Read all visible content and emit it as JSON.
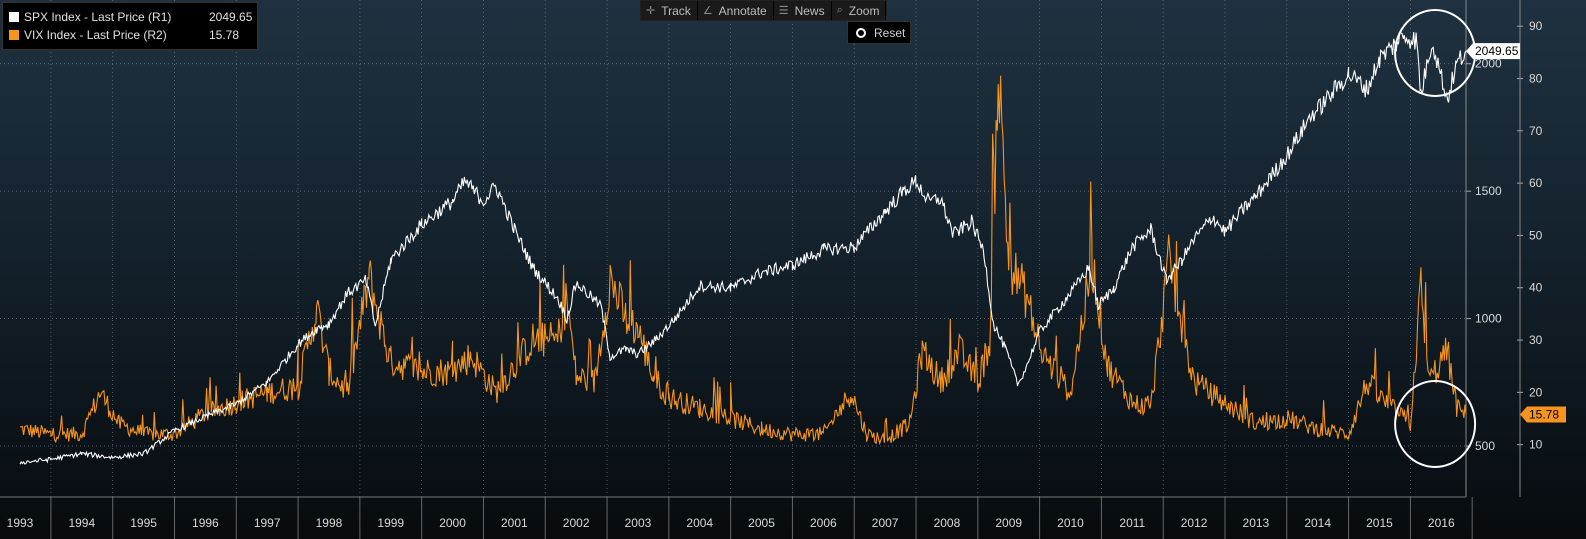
{
  "legend": {
    "items": [
      {
        "label": "SPX Index - Last Price (R1)",
        "value": "2049.65",
        "color": "#ffffff"
      },
      {
        "label": "VIX Index - Last Price (R2)",
        "value": "15.78",
        "color": "#f7941d"
      }
    ]
  },
  "toolbar": {
    "track": {
      "label": "Track",
      "icon": "crosshair-icon"
    },
    "annotate": {
      "label": "Annotate",
      "icon": "pencil-icon"
    },
    "news": {
      "label": "News",
      "icon": "news-icon"
    },
    "zoom": {
      "label": "Zoom",
      "icon": "magnifier-icon"
    },
    "reset": {
      "label": "Reset",
      "icon": "radio-dot-icon"
    }
  },
  "chart_data": {
    "type": "line",
    "x_ticks": [
      "1993",
      "1994",
      "1995",
      "1996",
      "1997",
      "1998",
      "1999",
      "2000",
      "2001",
      "2002",
      "2003",
      "2004",
      "2005",
      "2006",
      "2007",
      "2008",
      "2009",
      "2010",
      "2011",
      "2012",
      "2013",
      "2014",
      "2015",
      "2016"
    ],
    "xlim": [
      1993.0,
      2016.4
    ],
    "axes": {
      "spx": {
        "ticks": [
          "500",
          "1000",
          "1500",
          "2000"
        ],
        "ylim": [
          300,
          2250
        ]
      },
      "vix": {
        "ticks": [
          "10",
          "20",
          "30",
          "40",
          "50",
          "60",
          "70",
          "80",
          "90"
        ],
        "ylim": [
          0,
          95
        ]
      }
    },
    "series": [
      {
        "name": "SPX Index - Last Price (R1)",
        "color": "#ffffff",
        "axis": "spx",
        "last_value": "2049.65",
        "points": [
          [
            1993.0,
            435
          ],
          [
            1993.5,
            448
          ],
          [
            1994.0,
            470
          ],
          [
            1994.5,
            455
          ],
          [
            1995.0,
            470
          ],
          [
            1995.5,
            560
          ],
          [
            1996.0,
            615
          ],
          [
            1996.5,
            665
          ],
          [
            1997.0,
            750
          ],
          [
            1997.5,
            900
          ],
          [
            1997.8,
            960
          ],
          [
            1998.0,
            980
          ],
          [
            1998.3,
            1100
          ],
          [
            1998.6,
            1150
          ],
          [
            1998.75,
            970
          ],
          [
            1999.0,
            1230
          ],
          [
            1999.5,
            1370
          ],
          [
            2000.0,
            1460
          ],
          [
            2000.2,
            1540
          ],
          [
            2000.5,
            1460
          ],
          [
            2000.7,
            1520
          ],
          [
            2001.0,
            1350
          ],
          [
            2001.3,
            1200
          ],
          [
            2001.7,
            1080
          ],
          [
            2001.85,
            1000
          ],
          [
            2002.0,
            1140
          ],
          [
            2002.4,
            1050
          ],
          [
            2002.55,
            850
          ],
          [
            2002.8,
            880
          ],
          [
            2003.0,
            860
          ],
          [
            2003.3,
            920
          ],
          [
            2003.6,
            1000
          ],
          [
            2004.0,
            1130
          ],
          [
            2004.5,
            1120
          ],
          [
            2005.0,
            1180
          ],
          [
            2005.5,
            1210
          ],
          [
            2006.0,
            1270
          ],
          [
            2006.5,
            1280
          ],
          [
            2007.0,
            1420
          ],
          [
            2007.3,
            1500
          ],
          [
            2007.5,
            1540
          ],
          [
            2007.7,
            1460
          ],
          [
            2007.9,
            1470
          ],
          [
            2008.1,
            1330
          ],
          [
            2008.4,
            1380
          ],
          [
            2008.6,
            1260
          ],
          [
            2008.75,
            980
          ],
          [
            2008.95,
            880
          ],
          [
            2009.15,
            740
          ],
          [
            2009.3,
            820
          ],
          [
            2009.5,
            950
          ],
          [
            2010.0,
            1100
          ],
          [
            2010.3,
            1200
          ],
          [
            2010.45,
            1050
          ],
          [
            2010.7,
            1120
          ],
          [
            2011.0,
            1280
          ],
          [
            2011.3,
            1350
          ],
          [
            2011.55,
            1150
          ],
          [
            2011.8,
            1230
          ],
          [
            2012.0,
            1310
          ],
          [
            2012.3,
            1400
          ],
          [
            2012.5,
            1340
          ],
          [
            2012.8,
            1430
          ],
          [
            2013.0,
            1480
          ],
          [
            2013.5,
            1640
          ],
          [
            2013.9,
            1800
          ],
          [
            2014.0,
            1820
          ],
          [
            2014.5,
            1960
          ],
          [
            2014.8,
            1900
          ],
          [
            2015.0,
            2020
          ],
          [
            2015.4,
            2110
          ],
          [
            2015.6,
            2090
          ],
          [
            2015.67,
            1880
          ],
          [
            2015.85,
            2090
          ],
          [
            2016.1,
            1860
          ],
          [
            2016.25,
            2000
          ],
          [
            2016.4,
            2049.65
          ]
        ]
      },
      {
        "name": "VIX Index - Last Price (R2)",
        "color": "#f7941d",
        "axis": "vix",
        "last_value": "15.78",
        "points": [
          [
            1993.0,
            13
          ],
          [
            1993.5,
            12
          ],
          [
            1994.0,
            12
          ],
          [
            1994.3,
            20
          ],
          [
            1994.6,
            14
          ],
          [
            1995.0,
            12
          ],
          [
            1995.5,
            12
          ],
          [
            1996.0,
            16
          ],
          [
            1996.5,
            18
          ],
          [
            1997.0,
            20
          ],
          [
            1997.5,
            21
          ],
          [
            1997.8,
            36
          ],
          [
            1998.0,
            24
          ],
          [
            1998.3,
            20
          ],
          [
            1998.65,
            42
          ],
          [
            1998.9,
            30
          ],
          [
            1999.0,
            26
          ],
          [
            1999.5,
            24
          ],
          [
            2000.0,
            24
          ],
          [
            2000.3,
            27
          ],
          [
            2000.7,
            20
          ],
          [
            2001.0,
            25
          ],
          [
            2001.3,
            30
          ],
          [
            2001.7,
            30
          ],
          [
            2001.85,
            38
          ],
          [
            2002.0,
            23
          ],
          [
            2002.3,
            22
          ],
          [
            2002.55,
            42
          ],
          [
            2002.8,
            34
          ],
          [
            2003.0,
            32
          ],
          [
            2003.25,
            23
          ],
          [
            2003.5,
            19
          ],
          [
            2004.0,
            17
          ],
          [
            2004.5,
            15
          ],
          [
            2005.0,
            13
          ],
          [
            2005.5,
            12
          ],
          [
            2006.0,
            12
          ],
          [
            2006.45,
            20
          ],
          [
            2006.7,
            12
          ],
          [
            2007.0,
            11
          ],
          [
            2007.4,
            14
          ],
          [
            2007.6,
            28
          ],
          [
            2007.9,
            22
          ],
          [
            2008.2,
            28
          ],
          [
            2008.5,
            22
          ],
          [
            2008.7,
            30
          ],
          [
            2008.83,
            82
          ],
          [
            2009.0,
            45
          ],
          [
            2009.3,
            38
          ],
          [
            2009.5,
            28
          ],
          [
            2010.0,
            20
          ],
          [
            2010.35,
            45
          ],
          [
            2010.6,
            25
          ],
          [
            2011.0,
            18
          ],
          [
            2011.3,
            17
          ],
          [
            2011.6,
            46
          ],
          [
            2011.8,
            32
          ],
          [
            2012.0,
            22
          ],
          [
            2012.5,
            18
          ],
          [
            2013.0,
            14
          ],
          [
            2013.5,
            15
          ],
          [
            2014.0,
            13
          ],
          [
            2014.5,
            12
          ],
          [
            2014.8,
            22
          ],
          [
            2015.0,
            19
          ],
          [
            2015.5,
            14
          ],
          [
            2015.67,
            40
          ],
          [
            2015.8,
            22
          ],
          [
            2016.1,
            28
          ],
          [
            2016.25,
            17
          ],
          [
            2016.4,
            15.78
          ]
        ]
      }
    ],
    "annotations": [
      {
        "type": "circle",
        "target": "SPX Index - Last Price (R1)",
        "center_year": 2015.9
      },
      {
        "type": "circle",
        "target": "VIX Index - Last Price (R2)",
        "center_year": 2015.9
      }
    ],
    "grid": true
  }
}
